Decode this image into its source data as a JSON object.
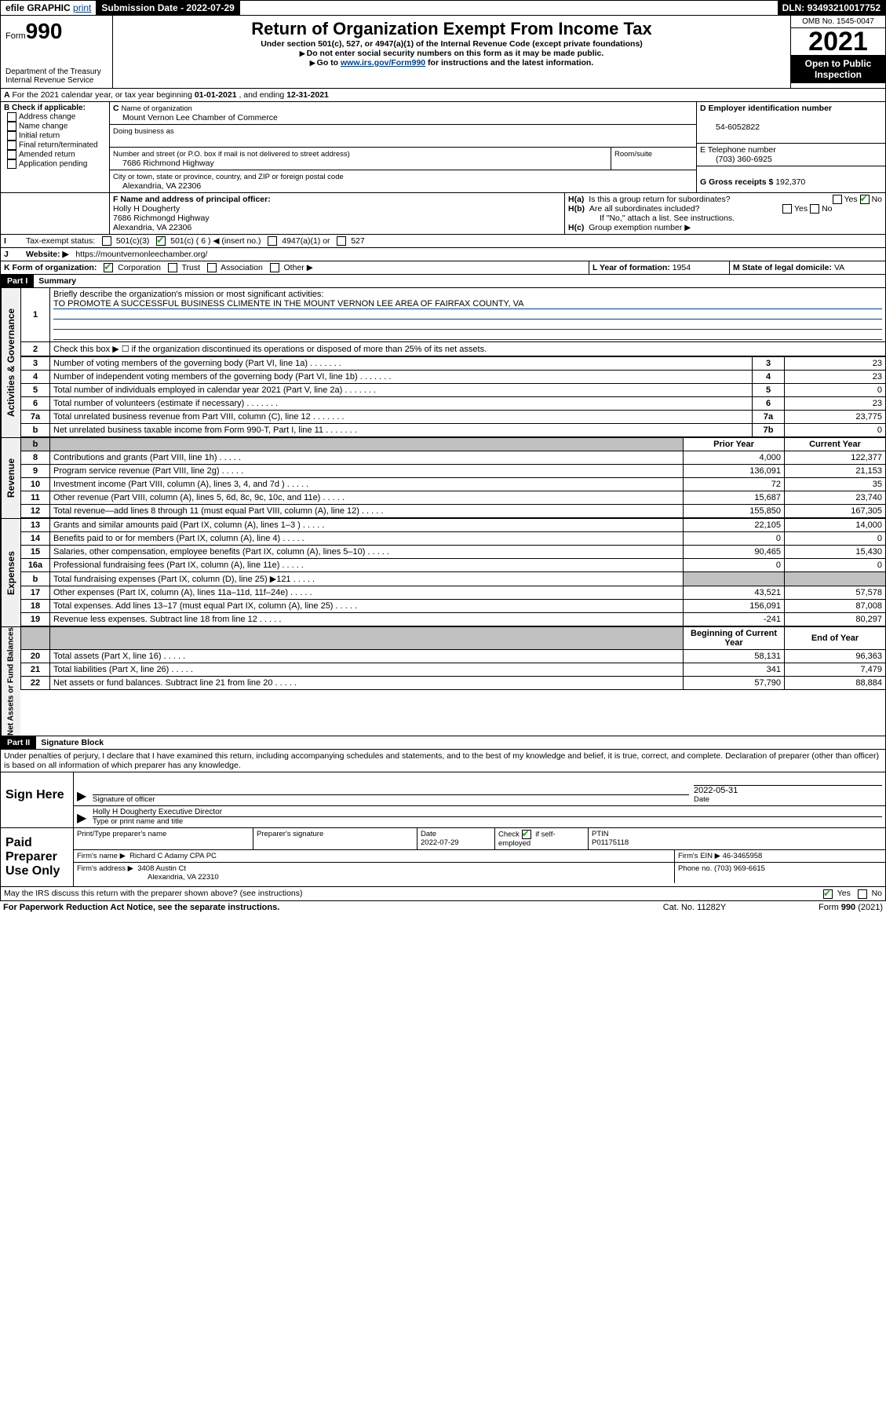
{
  "topbar": {
    "efile": "efile GRAPHIC",
    "print": "print",
    "submission_label": "Submission Date - ",
    "submission_date": "2022-07-29",
    "dln_label": "DLN: ",
    "dln": "93493210017752"
  },
  "header": {
    "form_prefix": "Form",
    "form_no": "990",
    "dept": "Department of the Treasury",
    "irs": "Internal Revenue Service",
    "title": "Return of Organization Exempt From Income Tax",
    "subtitle": "Under section 501(c), 527, or 4947(a)(1) of the Internal Revenue Code (except private foundations)",
    "note1": "Do not enter social security numbers on this form as it may be made public.",
    "note2_prefix": "Go to ",
    "note2_link": "www.irs.gov/Form990",
    "note2_suffix": " for instructions and the latest information.",
    "omb": "OMB No. 1545-0047",
    "year": "2021",
    "open": "Open to Public Inspection"
  },
  "sectionA": {
    "text_prefix": "For the 2021 calendar year, or tax year beginning ",
    "begin": "01-01-2021",
    "mid": " , and ending ",
    "end": "12-31-2021"
  },
  "sectionB": {
    "label": "B Check if applicable:",
    "options": [
      "Address change",
      "Name change",
      "Initial return",
      "Final return/terminated",
      "Amended return",
      "Application pending"
    ]
  },
  "sectionC": {
    "label": "Name of organization",
    "name": "Mount Vernon Lee Chamber of Commerce",
    "dba_label": "Doing business as",
    "dba": "",
    "street_label": "Number and street (or P.O. box if mail is not delivered to street address)",
    "room_label": "Room/suite",
    "street": "7686 Richmond Highway",
    "city_label": "City or town, state or province, country, and ZIP or foreign postal code",
    "city": "Alexandria, VA  22306"
  },
  "sectionD": {
    "label": "D Employer identification number",
    "ein": "54-6052822"
  },
  "sectionE": {
    "label": "E Telephone number",
    "phone": "(703) 360-6925"
  },
  "sectionG": {
    "label": "G Gross receipts $ ",
    "value": "192,370"
  },
  "sectionF": {
    "label": "F Name and address of principal officer:",
    "name": "Holly H Dougherty",
    "street": "7686 Richmongd Highway",
    "city": "Alexandria, VA  22306"
  },
  "sectionH": {
    "a": "Is this a group return for subordinates?",
    "b": "Are all subordinates included?",
    "b_note": "If \"No,\" attach a list. See instructions.",
    "c": "Group exemption number ▶",
    "yes": "Yes",
    "no": "No"
  },
  "sectionI": {
    "label": "Tax-exempt status:",
    "opt1": "501(c)(3)",
    "opt2": "501(c) ( 6 ) ◀ (insert no.)",
    "opt3": "4947(a)(1)  or",
    "opt4": "527"
  },
  "sectionJ": {
    "label": "Website: ▶",
    "value": "https://mountvernonleechamber.org/"
  },
  "sectionK": {
    "label": "K Form of organization:",
    "opt1": "Corporation",
    "opt2": "Trust",
    "opt3": "Association",
    "opt4": "Other ▶"
  },
  "sectionL": {
    "label": "L Year of formation: ",
    "value": "1954"
  },
  "sectionM": {
    "label": "M State of legal domicile: ",
    "value": "VA"
  },
  "part1": {
    "label": "Part I",
    "title": "Summary"
  },
  "summary": {
    "l1_label": "Briefly describe the organization's mission or most significant activities:",
    "l1_text": "TO PROMOTE A SUCCESSFUL BUSINESS CLIMENTE IN THE MOUNT VERNON LEE AREA OF FAIRFAX COUNTY, VA",
    "l2": "Check this box ▶ ☐ if the organization discontinued its operations or disposed of more than 25% of its net assets.",
    "vert_ag": "Activities & Governance",
    "vert_rev": "Revenue",
    "vert_exp": "Expenses",
    "vert_net": "Net Assets or Fund Balances",
    "prior_year": "Prior Year",
    "current_year": "Current Year",
    "begin_year": "Beginning of Current Year",
    "end_year": "End of Year",
    "rows_ag": [
      {
        "n": "3",
        "desc": "Number of voting members of the governing body (Part VI, line 1a)",
        "ln": "3",
        "v": "23"
      },
      {
        "n": "4",
        "desc": "Number of independent voting members of the governing body (Part VI, line 1b)",
        "ln": "4",
        "v": "23"
      },
      {
        "n": "5",
        "desc": "Total number of individuals employed in calendar year 2021 (Part V, line 2a)",
        "ln": "5",
        "v": "0"
      },
      {
        "n": "6",
        "desc": "Total number of volunteers (estimate if necessary)",
        "ln": "6",
        "v": "23"
      },
      {
        "n": "7a",
        "desc": "Total unrelated business revenue from Part VIII, column (C), line 12",
        "ln": "7a",
        "v": "23,775"
      },
      {
        "n": "b",
        "desc": "Net unrelated business taxable income from Form 990-T, Part I, line 11",
        "ln": "7b",
        "v": "0"
      }
    ],
    "rows_rev": [
      {
        "n": "8",
        "desc": "Contributions and grants (Part VIII, line 1h)",
        "p": "4,000",
        "c": "122,377"
      },
      {
        "n": "9",
        "desc": "Program service revenue (Part VIII, line 2g)",
        "p": "136,091",
        "c": "21,153"
      },
      {
        "n": "10",
        "desc": "Investment income (Part VIII, column (A), lines 3, 4, and 7d )",
        "p": "72",
        "c": "35"
      },
      {
        "n": "11",
        "desc": "Other revenue (Part VIII, column (A), lines 5, 6d, 8c, 9c, 10c, and 11e)",
        "p": "15,687",
        "c": "23,740"
      },
      {
        "n": "12",
        "desc": "Total revenue—add lines 8 through 11 (must equal Part VIII, column (A), line 12)",
        "p": "155,850",
        "c": "167,305"
      }
    ],
    "rows_exp": [
      {
        "n": "13",
        "desc": "Grants and similar amounts paid (Part IX, column (A), lines 1–3 )",
        "p": "22,105",
        "c": "14,000"
      },
      {
        "n": "14",
        "desc": "Benefits paid to or for members (Part IX, column (A), line 4)",
        "p": "0",
        "c": "0"
      },
      {
        "n": "15",
        "desc": "Salaries, other compensation, employee benefits (Part IX, column (A), lines 5–10)",
        "p": "90,465",
        "c": "15,430"
      },
      {
        "n": "16a",
        "desc": "Professional fundraising fees (Part IX, column (A), line 11e)",
        "p": "0",
        "c": "0"
      },
      {
        "n": "b",
        "desc": "Total fundraising expenses (Part IX, column (D), line 25) ▶121",
        "p": "",
        "c": "",
        "shaded": true
      },
      {
        "n": "17",
        "desc": "Other expenses (Part IX, column (A), lines 11a–11d, 11f–24e)",
        "p": "43,521",
        "c": "57,578"
      },
      {
        "n": "18",
        "desc": "Total expenses. Add lines 13–17 (must equal Part IX, column (A), line 25)",
        "p": "156,091",
        "c": "87,008"
      },
      {
        "n": "19",
        "desc": "Revenue less expenses. Subtract line 18 from line 12",
        "p": "-241",
        "c": "80,297"
      }
    ],
    "rows_net": [
      {
        "n": "20",
        "desc": "Total assets (Part X, line 16)",
        "p": "58,131",
        "c": "96,363"
      },
      {
        "n": "21",
        "desc": "Total liabilities (Part X, line 26)",
        "p": "341",
        "c": "7,479"
      },
      {
        "n": "22",
        "desc": "Net assets or fund balances. Subtract line 21 from line 20",
        "p": "57,790",
        "c": "88,884"
      }
    ]
  },
  "part2": {
    "label": "Part II",
    "title": "Signature Block",
    "penalties": "Under penalties of perjury, I declare that I have examined this return, including accompanying schedules and statements, and to the best of my knowledge and belief, it is true, correct, and complete. Declaration of preparer (other than officer) is based on all information of which preparer has any knowledge."
  },
  "sign": {
    "left": "Sign Here",
    "sig_officer": "Signature of officer",
    "date_label": "Date",
    "date": "2022-05-31",
    "name": "Holly H Dougherty  Executive Director",
    "name_label": "Type or print name and title"
  },
  "preparer": {
    "left": "Paid Preparer Use Only",
    "print_label": "Print/Type preparer's name",
    "sig_label": "Preparer's signature",
    "date_label": "Date",
    "date": "2022-07-29",
    "check_label": "Check",
    "self_emp": "if self-employed",
    "ptin_label": "PTIN",
    "ptin": "P01175118",
    "firm_name_label": "Firm's name    ▶",
    "firm_name": "Richard C Adamy CPA PC",
    "firm_ein_label": "Firm's EIN ▶",
    "firm_ein": "46-3465958",
    "firm_addr_label": "Firm's address ▶",
    "firm_addr1": "3408 Austin Ct",
    "firm_addr2": "Alexandria, VA  22310",
    "phone_label": "Phone no. ",
    "phone": "(703) 969-6615"
  },
  "footer": {
    "discuss": "May the IRS discuss this return with the preparer shown above? (see instructions)",
    "yes": "Yes",
    "no": "No",
    "paperwork": "For Paperwork Reduction Act Notice, see the separate instructions.",
    "cat": "Cat. No. 11282Y",
    "form": "Form 990 (2021)"
  }
}
